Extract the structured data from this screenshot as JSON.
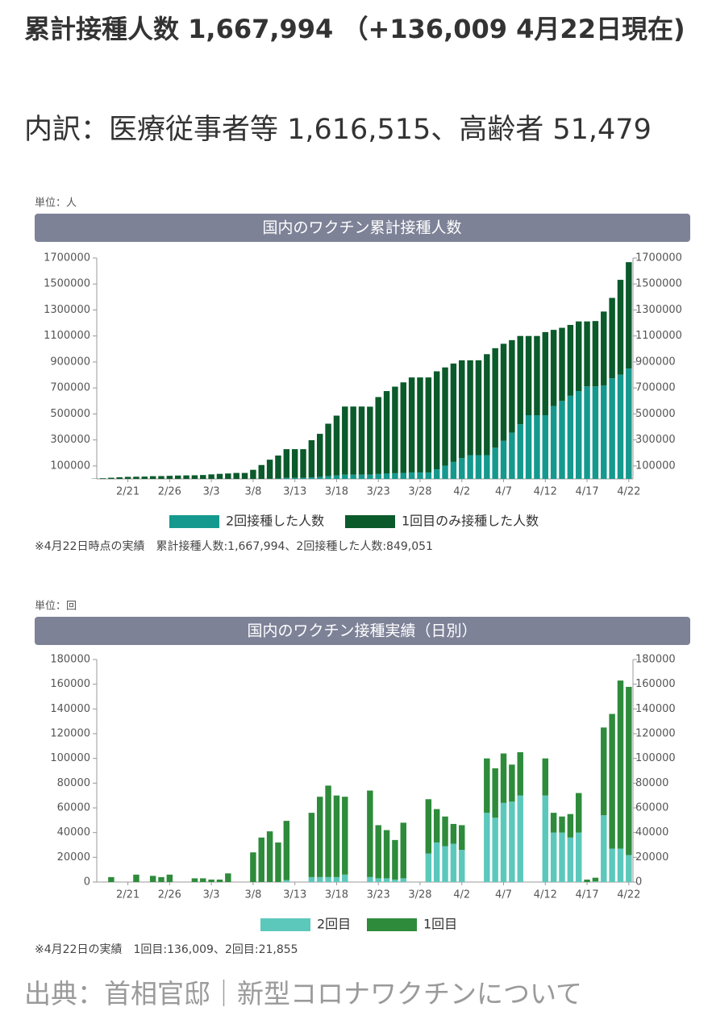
{
  "header": {
    "title": "累計接種人数 1,667,994 （+136,009 4月22日現在)",
    "breakdown": "内訳：医療従事者等 1,616,515、高齢者 51,479"
  },
  "source": "出典：首相官邸｜新型コロナワクチンについて",
  "chart_data": [
    {
      "type": "bar",
      "stacked": true,
      "unit": "単位：人",
      "title": "国内のワクチン累計接種人数",
      "categories": [
        null,
        null,
        null,
        null,
        "2/21",
        null,
        null,
        null,
        null,
        "2/26",
        null,
        null,
        null,
        null,
        "3/3",
        null,
        null,
        null,
        null,
        "3/8",
        null,
        null,
        null,
        null,
        "3/13",
        null,
        null,
        null,
        null,
        "3/18",
        null,
        null,
        null,
        null,
        "3/23",
        null,
        null,
        null,
        null,
        "3/28",
        null,
        null,
        null,
        null,
        "4/2",
        null,
        null,
        null,
        null,
        "4/7",
        null,
        null,
        null,
        null,
        "4/12",
        null,
        null,
        null,
        null,
        "4/17",
        null,
        null,
        null,
        null,
        "4/22"
      ],
      "series": [
        {
          "name": "2回接種した人数",
          "color": "#15998e",
          "values": [
            0,
            0,
            0,
            0,
            0,
            0,
            0,
            0,
            0,
            0,
            0,
            0,
            0,
            0,
            0,
            0,
            0,
            0,
            0,
            0,
            0,
            1000,
            3000,
            8000,
            8000,
            8000,
            12000,
            16000,
            22000,
            27000,
            33000,
            33000,
            33000,
            33000,
            38000,
            41000,
            44000,
            46000,
            50000,
            50000,
            50000,
            74000,
            102000,
            131000,
            160000,
            183000,
            183000,
            183000,
            240000,
            293000,
            356000,
            420000,
            490000,
            490000,
            490000,
            560000,
            600000,
            640000,
            676000,
            712000,
            712000,
            720000,
            774000,
            802000,
            849051
          ]
        },
        {
          "name": "1回目のみ接種した人数",
          "color": "#0b5a2b",
          "values": [
            2000,
            5000,
            9000,
            13000,
            16000,
            17000,
            18000,
            21000,
            22000,
            24000,
            26000,
            27000,
            28000,
            30000,
            35000,
            39000,
            42000,
            46000,
            46000,
            70000,
            107000,
            147000,
            177000,
            221000,
            221000,
            221000,
            286000,
            331000,
            403000,
            460000,
            524000,
            524000,
            524000,
            523000,
            592000,
            635000,
            666000,
            697000,
            731000,
            731000,
            731000,
            754000,
            756000,
            757000,
            753000,
            730000,
            730000,
            777000,
            766000,
            747000,
            712000,
            680000,
            610000,
            610000,
            640000,
            587000,
            563000,
            545000,
            536000,
            500000,
            503000,
            568000,
            619000,
            730000,
            818943
          ]
        }
      ],
      "ylim": [
        0,
        1700000
      ],
      "yticks": [
        100000,
        300000,
        500000,
        700000,
        900000,
        1100000,
        1300000,
        1500000,
        1700000
      ],
      "right_axis": true,
      "note": "※4月22日時点の実績　累計接種人数:1,667,994、2回接種した人数:849,051"
    },
    {
      "type": "bar",
      "stacked": true,
      "unit": "単位：回",
      "title": "国内のワクチン接種実績（日別）",
      "categories": [
        null,
        null,
        null,
        null,
        "2/21",
        null,
        null,
        null,
        null,
        "2/26",
        null,
        null,
        null,
        null,
        "3/3",
        null,
        null,
        null,
        null,
        "3/8",
        null,
        null,
        null,
        null,
        "3/13",
        null,
        null,
        null,
        null,
        "3/18",
        null,
        null,
        null,
        null,
        "3/23",
        null,
        null,
        null,
        null,
        "3/28",
        null,
        null,
        null,
        null,
        "4/2",
        null,
        null,
        null,
        null,
        "4/7",
        null,
        null,
        null,
        null,
        "4/12",
        null,
        null,
        null,
        null,
        "4/17",
        null,
        null,
        null,
        null,
        "4/22"
      ],
      "series": [
        {
          "name": "2回目",
          "color": "#5cc8bc",
          "values": [
            0,
            0,
            0,
            0,
            0,
            0,
            0,
            0,
            0,
            0,
            0,
            0,
            0,
            0,
            0,
            0,
            0,
            0,
            0,
            0,
            0,
            0,
            0,
            1500,
            0,
            0,
            4000,
            4000,
            4000,
            4000,
            6000,
            0,
            0,
            4000,
            3000,
            3000,
            2000,
            3000,
            0,
            0,
            23000,
            32000,
            29000,
            31000,
            26000,
            0,
            0,
            56000,
            52000,
            64000,
            65000,
            70000,
            0,
            0,
            70000,
            40000,
            40000,
            36000,
            40000,
            0,
            500,
            54000,
            27000,
            27000,
            21855
          ]
        },
        {
          "name": "1回目",
          "color": "#2e8b3b",
          "values": [
            0,
            0,
            4000,
            0,
            0,
            6000,
            0,
            5000,
            4000,
            6000,
            0,
            0,
            3000,
            3000,
            2000,
            2000,
            7000,
            0,
            0,
            24000,
            36000,
            41000,
            32000,
            48000,
            0,
            0,
            52000,
            65000,
            74000,
            66000,
            63000,
            0,
            0,
            70000,
            43000,
            39000,
            32000,
            45000,
            0,
            0,
            44000,
            27000,
            24000,
            16000,
            20000,
            0,
            0,
            44000,
            40000,
            40000,
            30000,
            35000,
            0,
            0,
            30000,
            16000,
            13000,
            19000,
            32000,
            2000,
            3000,
            71000,
            109000,
            136000,
            136009
          ]
        }
      ],
      "ylim": [
        0,
        180000
      ],
      "yticks": [
        0,
        20000,
        40000,
        60000,
        80000,
        100000,
        120000,
        140000,
        160000,
        180000
      ],
      "right_axis": true,
      "note": "※4月22日の実績　1回目:136,009、2回目:21,855"
    }
  ]
}
